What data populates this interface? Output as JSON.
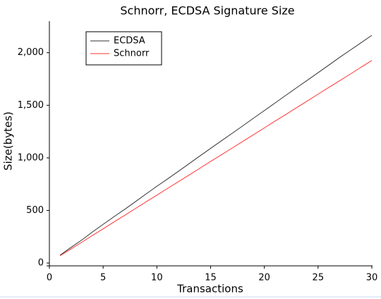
{
  "chart_data": {
    "type": "line",
    "title": "Schnorr, ECDSA Signature Size",
    "x_label": "Transactions",
    "y_label": "Size(bytes)",
    "x": [
      1,
      2,
      3,
      4,
      5,
      6,
      7,
      8,
      9,
      10,
      11,
      12,
      13,
      14,
      15,
      16,
      17,
      18,
      19,
      20,
      21,
      22,
      23,
      24,
      25,
      26,
      27,
      28,
      29,
      30
    ],
    "series": [
      {
        "name": "ECDSA",
        "color": "#333333",
        "values": [
          75,
          148,
          218,
          295,
          368,
          440,
          510,
          583,
          657,
          730,
          800,
          872,
          945,
          1018,
          1090,
          1162,
          1233,
          1305,
          1378,
          1450,
          1522,
          1595,
          1667,
          1738,
          1810,
          1882,
          1955,
          2025,
          2095,
          2165
        ]
      },
      {
        "name": "Schnorr",
        "color": "#ff3333",
        "values": [
          70,
          133,
          197,
          262,
          325,
          390,
          453,
          518,
          582,
          645,
          710,
          773,
          837,
          901,
          966,
          1029,
          1093,
          1157,
          1221,
          1285,
          1350,
          1413,
          1477,
          1541,
          1606,
          1670,
          1733,
          1797,
          1862,
          1926
        ]
      }
    ],
    "xlim": [
      0,
      30
    ],
    "xticks": [
      0,
      5,
      10,
      15,
      20,
      25,
      30
    ],
    "ylim": [
      0,
      2300
    ],
    "yticks": [
      0,
      500,
      {
        "value": 1000,
        "label": "1,000"
      },
      {
        "value": 1500,
        "label": "1,500"
      },
      {
        "value": 2000,
        "label": "2,000"
      }
    ],
    "legend": "upper-left"
  }
}
